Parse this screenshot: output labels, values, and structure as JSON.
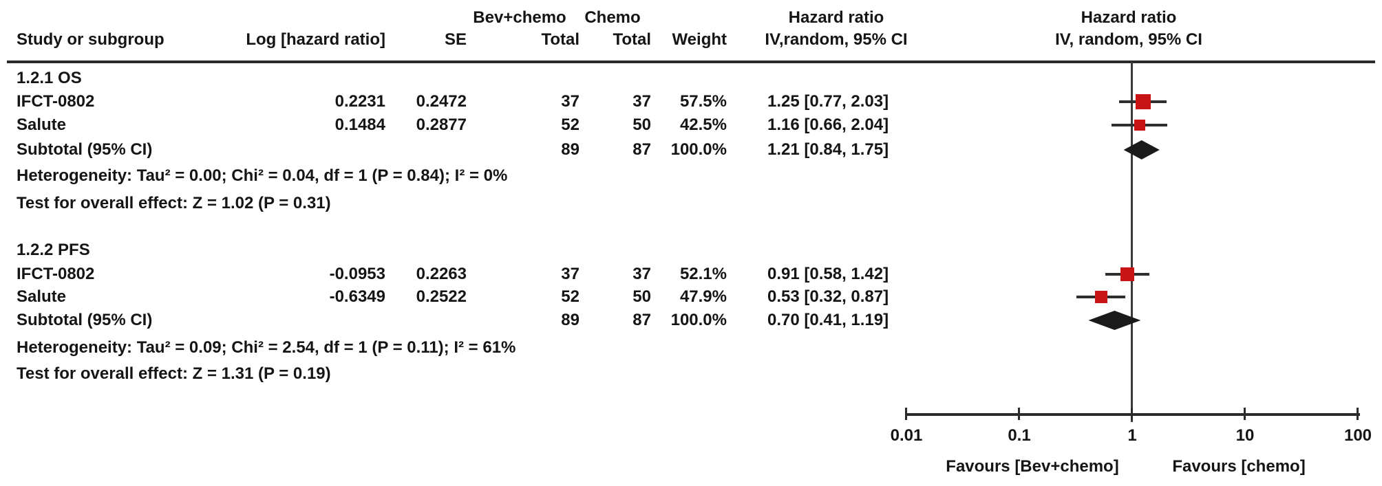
{
  "header": {
    "group1_name": "Bev+chemo",
    "group2_name": "Chemo",
    "hr_title_left": "Hazard ratio",
    "hr_title_right": "Hazard ratio",
    "col_study": "Study or subgroup",
    "col_loghr": "Log [hazard ratio]",
    "col_se": "SE",
    "col_total1": "Total",
    "col_total2": "Total",
    "col_weight": "Weight",
    "col_hr_method_left": "IV,random, 95% CI",
    "col_hr_method_right": "IV, random, 95% CI"
  },
  "table": {
    "groups": [
      {
        "title": "1.2.1 OS",
        "rows": [
          {
            "study": "IFCT-0802",
            "loghr": "0.2231",
            "se": "0.2472",
            "total1": "37",
            "total2": "37",
            "weight": "57.5%",
            "hr_ci": "1.25 [0.77, 2.03]"
          },
          {
            "study": "Salute",
            "loghr": "0.1484",
            "se": "0.2877",
            "total1": "52",
            "total2": "50",
            "weight": "42.5%",
            "hr_ci": "1.16 [0.66, 2.04]"
          }
        ],
        "subtotal": {
          "label": "Subtotal (95% CI)",
          "total1": "89",
          "total2": "87",
          "weight": "100.0%",
          "hr_ci": "1.21 [0.84, 1.75]"
        },
        "heterogeneity": "Heterogeneity: Tau² = 0.00; Chi² = 0.04, df = 1 (P = 0.84); I² = 0%",
        "overall_effect": "Test for overall effect: Z = 1.02 (P = 0.31)"
      },
      {
        "title": "1.2.2 PFS",
        "rows": [
          {
            "study": "IFCT-0802",
            "loghr": "-0.0953",
            "se": "0.2263",
            "total1": "37",
            "total2": "37",
            "weight": "52.1%",
            "hr_ci": "0.91 [0.58, 1.42]"
          },
          {
            "study": "Salute",
            "loghr": "-0.6349",
            "se": "0.2522",
            "total1": "52",
            "total2": "50",
            "weight": "47.9%",
            "hr_ci": "0.53 [0.32, 0.87]"
          }
        ],
        "subtotal": {
          "label": "Subtotal (95% CI)",
          "total1": "89",
          "total2": "87",
          "weight": "100.0%",
          "hr_ci": "0.70 [0.41, 1.19]"
        },
        "heterogeneity": "Heterogeneity: Tau² = 0.09; Chi² = 2.54, df = 1 (P = 0.11); I² = 61%",
        "overall_effect": "Test for overall effect: Z = 1.31 (P = 0.19)"
      }
    ]
  },
  "axis": {
    "tick_labels": [
      "0.01",
      "0.1",
      "1",
      "10",
      "100"
    ],
    "favours_left": "Favours [Bev+chemo]",
    "favours_right": "Favours [chemo]"
  },
  "colors": {
    "marker_square": "#c81414",
    "diamond": "#1a1a1a",
    "ci_line": "#2e2e2e",
    "axis_line": "#2b2b2b"
  },
  "chart_data": {
    "type": "scatter",
    "subtype": "forest-plot",
    "title": "",
    "x_scale": "log",
    "xlim": [
      0.01,
      100
    ],
    "x_ticks": [
      0.01,
      0.1,
      1,
      10,
      100
    ],
    "null_line": 1,
    "effect_measure": "Hazard ratio, IV, random, 95% CI",
    "favours_left": "Favours [Bev+chemo]",
    "favours_right": "Favours [chemo]",
    "groups": [
      {
        "name": "1.2.1 OS",
        "studies": [
          {
            "study": "IFCT-0802",
            "log_hr": 0.2231,
            "se": 0.2472,
            "bev_chemo_total": 37,
            "chemo_total": 37,
            "weight_pct": 57.5,
            "hr": 1.25,
            "ci_low": 0.77,
            "ci_high": 2.03
          },
          {
            "study": "Salute",
            "log_hr": 0.1484,
            "se": 0.2877,
            "bev_chemo_total": 52,
            "chemo_total": 50,
            "weight_pct": 42.5,
            "hr": 1.16,
            "ci_low": 0.66,
            "ci_high": 2.04
          }
        ],
        "subtotal": {
          "bev_chemo_total": 89,
          "chemo_total": 87,
          "weight_pct": 100.0,
          "hr": 1.21,
          "ci_low": 0.84,
          "ci_high": 1.75
        },
        "tau2": 0.0,
        "chi2": 0.04,
        "df": 1,
        "het_p": 0.84,
        "i2_pct": 0,
        "z": 1.02,
        "p": 0.31
      },
      {
        "name": "1.2.2 PFS",
        "studies": [
          {
            "study": "IFCT-0802",
            "log_hr": -0.0953,
            "se": 0.2263,
            "bev_chemo_total": 37,
            "chemo_total": 37,
            "weight_pct": 52.1,
            "hr": 0.91,
            "ci_low": 0.58,
            "ci_high": 1.42
          },
          {
            "study": "Salute",
            "log_hr": -0.6349,
            "se": 0.2522,
            "bev_chemo_total": 52,
            "chemo_total": 50,
            "weight_pct": 47.9,
            "hr": 0.53,
            "ci_low": 0.32,
            "ci_high": 0.87
          }
        ],
        "subtotal": {
          "bev_chemo_total": 89,
          "chemo_total": 87,
          "weight_pct": 100.0,
          "hr": 0.7,
          "ci_low": 0.41,
          "ci_high": 1.19
        },
        "tau2": 0.09,
        "chi2": 2.54,
        "df": 1,
        "het_p": 0.11,
        "i2_pct": 61,
        "z": 1.31,
        "p": 0.19
      }
    ]
  }
}
